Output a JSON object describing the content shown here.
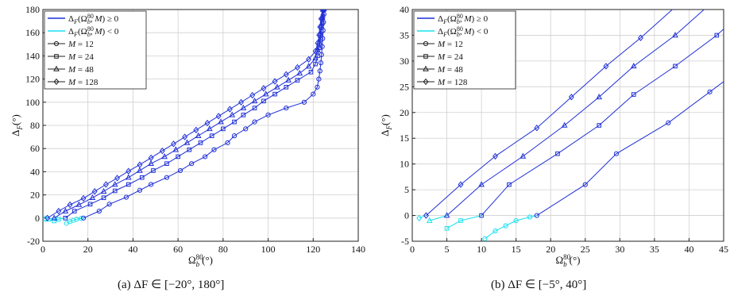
{
  "chart_data": [
    {
      "type": "line",
      "panel": "a",
      "caption": "(a) ΔF ∈ [−20°, 180°]",
      "xlabel": "Ω_b^80(°)",
      "ylabel": "Δ_F(°)",
      "xlim": [
        0,
        140
      ],
      "ylim": [
        -20,
        180
      ],
      "xticks": [
        0,
        20,
        40,
        60,
        80,
        100,
        120,
        140
      ],
      "yticks": [
        -20,
        0,
        20,
        40,
        60,
        80,
        100,
        120,
        140,
        160,
        180
      ],
      "grid": true,
      "legend_placement": "top-left",
      "legend": [
        {
          "label": "ΔF(Ω_b^80, M) ≥ 0",
          "kind": "line",
          "color": "#1f2fd6"
        },
        {
          "label": "ΔF(Ω_b^80, M) < 0",
          "kind": "line",
          "color": "#19e0ee"
        },
        {
          "label": "M = 12",
          "kind": "marker",
          "marker": "circle"
        },
        {
          "label": "M = 24",
          "kind": "marker",
          "marker": "square"
        },
        {
          "label": "M = 48",
          "kind": "marker",
          "marker": "triangle"
        },
        {
          "label": "M = 128",
          "kind": "marker",
          "marker": "diamond"
        }
      ],
      "series": [
        {
          "name": "M = 12",
          "marker": "circle",
          "points": [
            [
              10.5,
              -4.5
            ],
            [
              12,
              -3
            ],
            [
              13.5,
              -2
            ],
            [
              15,
              -1
            ],
            [
              17,
              -0.3
            ],
            [
              18,
              0
            ],
            [
              25,
              6
            ],
            [
              29.5,
              12
            ],
            [
              37,
              18
            ],
            [
              43,
              24
            ],
            [
              48,
              29
            ],
            [
              55,
              35
            ],
            [
              61,
              41
            ],
            [
              66,
              47
            ],
            [
              72,
              53
            ],
            [
              76,
              59
            ],
            [
              82,
              65
            ],
            [
              85,
              71
            ],
            [
              90,
              77
            ],
            [
              94,
              83
            ],
            [
              100,
              89
            ],
            [
              108,
              95
            ],
            [
              116,
              100
            ],
            [
              120,
              107
            ],
            [
              121.8,
              113
            ],
            [
              122.5,
              120
            ],
            [
              123,
              127
            ],
            [
              123.4,
              134
            ],
            [
              123.7,
              141
            ],
            [
              124,
              148
            ],
            [
              124.2,
              155
            ],
            [
              124.4,
              162
            ],
            [
              124.6,
              169
            ],
            [
              124.8,
              176
            ],
            [
              125,
              180
            ]
          ]
        },
        {
          "name": "M = 24",
          "marker": "square",
          "points": [
            [
              5,
              -2.5
            ],
            [
              7,
              -1
            ],
            [
              10,
              0
            ],
            [
              14,
              6
            ],
            [
              21,
              12
            ],
            [
              27,
              17.5
            ],
            [
              32,
              23.5
            ],
            [
              38,
              29
            ],
            [
              44,
              35
            ],
            [
              49,
              41
            ],
            [
              55,
              47
            ],
            [
              60,
              53
            ],
            [
              65,
              59
            ],
            [
              70,
              65
            ],
            [
              75,
              71
            ],
            [
              80,
              77
            ],
            [
              85,
              83
            ],
            [
              89,
              89
            ],
            [
              94,
              95
            ],
            [
              98,
              101
            ],
            [
              103,
              107
            ],
            [
              108,
              113
            ],
            [
              113,
              119
            ],
            [
              119,
              126
            ],
            [
              121,
              133
            ],
            [
              122,
              140
            ],
            [
              122.7,
              147
            ],
            [
              123.2,
              154
            ],
            [
              123.6,
              161
            ],
            [
              124,
              168
            ],
            [
              124.3,
              174
            ],
            [
              124.6,
              180
            ]
          ]
        },
        {
          "name": "M = 48",
          "marker": "triangle",
          "points": [
            [
              2.5,
              -1
            ],
            [
              5,
              0
            ],
            [
              10,
              6
            ],
            [
              16,
              11.5
            ],
            [
              22,
              17.5
            ],
            [
              27,
              23
            ],
            [
              32,
              29
            ],
            [
              38,
              35
            ],
            [
              43,
              41
            ],
            [
              48,
              47
            ],
            [
              54,
              53
            ],
            [
              59,
              59
            ],
            [
              64,
              65
            ],
            [
              69,
              71
            ],
            [
              74,
              77
            ],
            [
              79,
              83
            ],
            [
              84,
              89
            ],
            [
              89,
              95
            ],
            [
              94,
              101
            ],
            [
              99,
              107
            ],
            [
              104,
              113
            ],
            [
              109,
              119
            ],
            [
              114,
              125
            ],
            [
              118,
              131
            ],
            [
              121,
              138
            ],
            [
              122,
              145
            ],
            [
              122.7,
              152
            ],
            [
              123.2,
              159
            ],
            [
              123.6,
              166
            ],
            [
              124,
              173
            ],
            [
              124.4,
              180
            ]
          ]
        },
        {
          "name": "M = 128",
          "marker": "diamond",
          "points": [
            [
              1,
              -0.5
            ],
            [
              2,
              0
            ],
            [
              7,
              6
            ],
            [
              12,
              11.5
            ],
            [
              18,
              17
            ],
            [
              23,
              23
            ],
            [
              28,
              29
            ],
            [
              33,
              34.5
            ],
            [
              38,
              40.5
            ],
            [
              43,
              46
            ],
            [
              48,
              52
            ],
            [
              53,
              58
            ],
            [
              58,
              64
            ],
            [
              63,
              70
            ],
            [
              68,
              76
            ],
            [
              73,
              82
            ],
            [
              78,
              88
            ],
            [
              83,
              94
            ],
            [
              88,
              100
            ],
            [
              93,
              106
            ],
            [
              98,
              112
            ],
            [
              103,
              118
            ],
            [
              108,
              124
            ],
            [
              113,
              130
            ],
            [
              118,
              137
            ],
            [
              121,
              144
            ],
            [
              122,
              151
            ],
            [
              122.6,
              158
            ],
            [
              123,
              165
            ],
            [
              123.5,
              172
            ],
            [
              124,
              180
            ]
          ]
        }
      ]
    },
    {
      "type": "line",
      "panel": "b",
      "caption": "(b) ΔF ∈ [−5°, 40°]",
      "xlabel": "Ω_b^80(°)",
      "ylabel": "Δ_F(°)",
      "xlim": [
        0,
        45
      ],
      "ylim": [
        -5,
        40
      ],
      "xticks": [
        0,
        5,
        10,
        15,
        20,
        25,
        30,
        35,
        40,
        45
      ],
      "yticks": [
        -5,
        0,
        5,
        10,
        15,
        20,
        25,
        30,
        35,
        40
      ],
      "grid": true,
      "legend_placement": "top-left",
      "legend": [
        {
          "label": "ΔF(Ω_b^80, M) ≥ 0",
          "kind": "line",
          "color": "#1f2fd6"
        },
        {
          "label": "ΔF(Ω_b^80, M) < 0",
          "kind": "line",
          "color": "#19e0ee"
        },
        {
          "label": "M = 12",
          "kind": "marker",
          "marker": "circle"
        },
        {
          "label": "M = 24",
          "kind": "marker",
          "marker": "square"
        },
        {
          "label": "M = 48",
          "kind": "marker",
          "marker": "triangle"
        },
        {
          "label": "M = 128",
          "kind": "marker",
          "marker": "diamond"
        }
      ],
      "series": [
        {
          "name": "M = 12",
          "marker": "circle",
          "points": [
            [
              10.5,
              -4.5
            ],
            [
              12,
              -3
            ],
            [
              13.5,
              -2
            ],
            [
              15,
              -1
            ],
            [
              17,
              -0.3
            ],
            [
              18,
              0
            ],
            [
              25,
              6
            ],
            [
              29.5,
              12
            ],
            [
              37,
              18
            ],
            [
              43,
              24
            ],
            [
              48,
              29
            ]
          ]
        },
        {
          "name": "M = 24",
          "marker": "square",
          "points": [
            [
              5,
              -2.5
            ],
            [
              7,
              -1
            ],
            [
              10,
              0
            ],
            [
              14,
              6
            ],
            [
              21,
              12
            ],
            [
              27,
              17.5
            ],
            [
              32,
              23.5
            ],
            [
              38,
              29
            ],
            [
              44,
              35
            ],
            [
              49,
              41
            ]
          ]
        },
        {
          "name": "M = 48",
          "marker": "triangle",
          "points": [
            [
              2.5,
              -1
            ],
            [
              5,
              0
            ],
            [
              10,
              6
            ],
            [
              16,
              11.5
            ],
            [
              22,
              17.5
            ],
            [
              27,
              23
            ],
            [
              32,
              29
            ],
            [
              38,
              35
            ],
            [
              43,
              41
            ]
          ]
        },
        {
          "name": "M = 128",
          "marker": "diamond",
          "points": [
            [
              1,
              -0.5
            ],
            [
              2,
              0
            ],
            [
              7,
              6
            ],
            [
              12,
              11.5
            ],
            [
              18,
              17
            ],
            [
              23,
              23
            ],
            [
              28,
              29
            ],
            [
              33,
              34.5
            ],
            [
              38,
              40.5
            ]
          ]
        }
      ]
    }
  ],
  "colors": {
    "positive": "#1f2fd6",
    "negative": "#19e0ee",
    "grid": "#d0d0d0",
    "axis": "#222222"
  }
}
